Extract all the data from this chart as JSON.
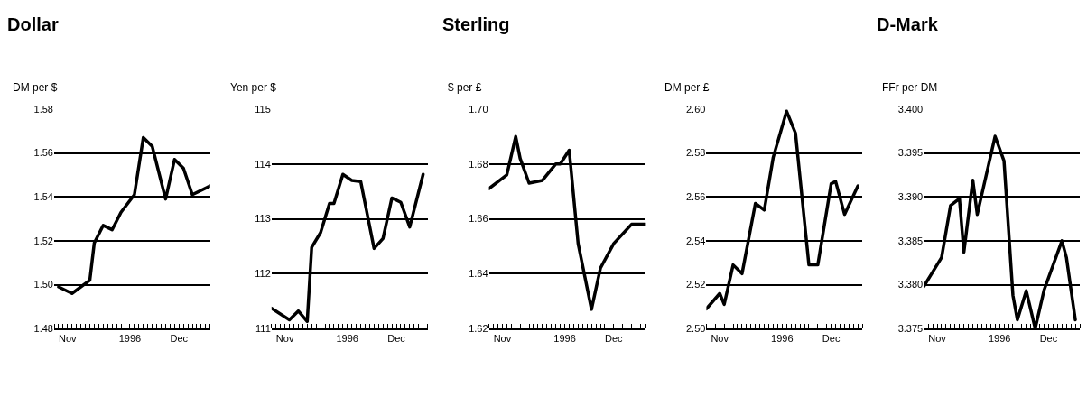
{
  "chart_data": [
    {
      "type": "line",
      "title": "Dollar",
      "ylabel": "DM per $",
      "grid": "y",
      "line_style": "solid",
      "color": "#000000",
      "x": [
        "1996-11-05",
        "1996-11-08",
        "1996-11-12",
        "1996-11-13",
        "1996-11-15",
        "1996-11-17",
        "1996-11-19",
        "1996-11-22",
        "1996-11-24",
        "1996-11-26",
        "1996-11-29",
        "1996-12-01",
        "1996-12-03",
        "1996-12-05",
        "1996-12-09"
      ],
      "values": [
        1.499,
        1.496,
        1.502,
        1.519,
        1.527,
        1.525,
        1.533,
        1.541,
        1.567,
        1.563,
        1.539,
        1.557,
        1.553,
        1.541,
        1.545
      ],
      "ylim": [
        1.48,
        1.58
      ],
      "yticks": [
        {
          "value": 1.48,
          "label": "1.48"
        },
        {
          "value": 1.5,
          "label": "1.50"
        },
        1.52,
        1.54,
        1.56,
        1.58
      ],
      "xlim": [
        "1996-11-04",
        "1996-12-09"
      ],
      "xticks": [
        {
          "value": "1996-11-07",
          "label": "Nov"
        },
        {
          "value": "1996-11-21",
          "label": "1996"
        },
        {
          "value": "1996-12-02",
          "label": "Dec"
        }
      ]
    },
    {
      "type": "line",
      "ylabel": "Yen per $",
      "grid": "y",
      "line_style": "solid",
      "color": "#000000",
      "x": [
        "1996-11-04",
        "1996-11-08",
        "1996-11-10",
        "1996-11-12",
        "1996-11-13",
        "1996-11-15",
        "1996-11-17",
        "1996-11-18",
        "1996-11-20",
        "1996-11-22",
        "1996-11-24",
        "1996-11-27",
        "1996-11-29",
        "1996-12-01",
        "1996-12-03",
        "1996-12-05",
        "1996-12-08"
      ],
      "values": [
        111.37,
        111.16,
        111.32,
        111.13,
        112.48,
        112.75,
        113.28,
        113.28,
        113.81,
        113.7,
        113.68,
        112.46,
        112.64,
        113.38,
        113.3,
        112.85,
        113.81
      ],
      "ylim": [
        111,
        115
      ],
      "yticks": [
        111,
        112,
        113,
        114,
        115
      ],
      "xlim": [
        "1996-11-04",
        "1996-12-09"
      ],
      "xticks": [
        {
          "value": "1996-11-07",
          "label": "Nov"
        },
        {
          "value": "1996-11-21",
          "label": "1996"
        },
        {
          "value": "1996-12-02",
          "label": "Dec"
        }
      ]
    },
    {
      "type": "line",
      "title": "Sterling",
      "ylabel": "$ per £",
      "grid": "y",
      "line_style": "solid",
      "color": "#000000",
      "x": [
        "1996-11-04",
        "1996-11-08",
        "1996-11-10",
        "1996-11-11",
        "1996-11-13",
        "1996-11-16",
        "1996-11-19",
        "1996-11-20",
        "1996-11-22",
        "1996-11-24",
        "1996-11-27",
        "1996-11-29",
        "1996-12-02",
        "1996-12-06",
        "1996-12-09"
      ],
      "values": [
        1.671,
        1.676,
        1.69,
        1.682,
        1.673,
        1.674,
        1.68,
        1.68,
        1.685,
        1.651,
        1.627,
        1.642,
        1.651,
        1.658,
        1.658
      ],
      "ylim": [
        1.62,
        1.7
      ],
      "yticks": [
        1.62,
        1.64,
        1.66,
        1.68,
        {
          "value": 1.7,
          "label": "1.70"
        }
      ],
      "xlim": [
        "1996-11-04",
        "1996-12-09"
      ],
      "xticks": [
        {
          "value": "1996-11-07",
          "label": "Nov"
        },
        {
          "value": "1996-11-21",
          "label": "1996"
        },
        {
          "value": "1996-12-02",
          "label": "Dec"
        }
      ]
    },
    {
      "type": "line",
      "ylabel": "DM per £",
      "grid": "y",
      "line_style": "solid",
      "color": "#000000",
      "x": [
        "1996-11-04",
        "1996-11-07",
        "1996-11-08",
        "1996-11-10",
        "1996-11-12",
        "1996-11-15",
        "1996-11-17",
        "1996-11-19",
        "1996-11-22",
        "1996-11-24",
        "1996-11-27",
        "1996-11-29",
        "1996-12-02",
        "1996-12-03",
        "1996-12-05",
        "1996-12-08"
      ],
      "values": [
        2.509,
        2.516,
        2.511,
        2.529,
        2.525,
        2.557,
        2.554,
        2.578,
        2.599,
        2.589,
        2.529,
        2.529,
        2.566,
        2.567,
        2.552,
        2.565
      ],
      "ylim": [
        2.5,
        2.6
      ],
      "yticks": [
        {
          "value": 2.5,
          "label": "2.50"
        },
        2.52,
        2.54,
        2.56,
        2.58,
        {
          "value": 2.6,
          "label": "2.60"
        }
      ],
      "xlim": [
        "1996-11-04",
        "1996-12-09"
      ],
      "xticks": [
        {
          "value": "1996-11-07",
          "label": "Nov"
        },
        {
          "value": "1996-11-21",
          "label": "1996"
        },
        {
          "value": "1996-12-02",
          "label": "Dec"
        }
      ]
    },
    {
      "type": "line",
      "title": "D-Mark",
      "ylabel": "FFr per DM",
      "grid": "y",
      "line_style": "solid",
      "color": "#000000",
      "x": [
        "1996-11-04",
        "1996-11-08",
        "1996-11-10",
        "1996-11-12",
        "1996-11-13",
        "1996-11-15",
        "1996-11-16",
        "1996-11-20",
        "1996-11-22",
        "1996-11-24",
        "1996-11-25",
        "1996-11-27",
        "1996-11-29",
        "1996-12-01",
        "1996-12-05",
        "1996-12-06",
        "1996-12-08"
      ],
      "values": [
        3.3798,
        3.3831,
        3.389,
        3.3898,
        3.3837,
        3.3919,
        3.388,
        3.3969,
        3.3941,
        3.3788,
        3.376,
        3.3793,
        3.375,
        3.3794,
        3.385,
        3.3831,
        3.376
      ],
      "ylim": [
        3.375,
        3.4
      ],
      "yticks": [
        3.375,
        {
          "value": 3.38,
          "label": "3.380"
        },
        3.385,
        {
          "value": 3.39,
          "label": "3.390"
        },
        3.395,
        {
          "value": 3.4,
          "label": "3.400"
        }
      ],
      "xlim": [
        "1996-11-04",
        "1996-12-09"
      ],
      "xticks": [
        {
          "value": "1996-11-07",
          "label": "Nov"
        },
        {
          "value": "1996-11-21",
          "label": "1996"
        },
        {
          "value": "1996-12-02",
          "label": "Dec"
        }
      ]
    }
  ]
}
